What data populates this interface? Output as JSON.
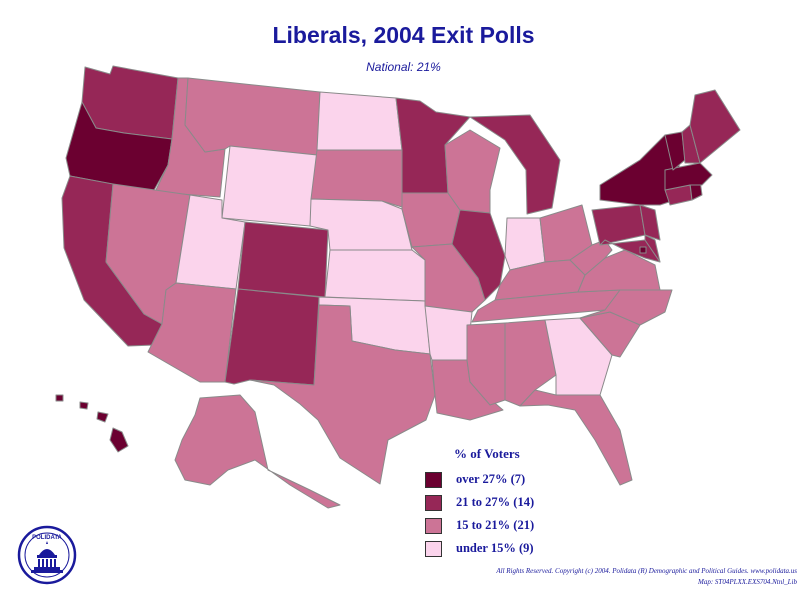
{
  "header": {
    "title": "Liberals, 2004 Exit Polls",
    "subtitle": "National: 21%"
  },
  "colors": {
    "over_27": "#6b0030",
    "21_to_27": "#962757",
    "15_to_21": "#cc7496",
    "under_15": "#fbd4ec",
    "border": "#8a8a8a",
    "text": "#1a1a9c"
  },
  "legend": {
    "title": "% of Voters",
    "items": [
      {
        "label": "over 27% (7)",
        "color": "#6b0030"
      },
      {
        "label": "21 to 27% (14)",
        "color": "#962757"
      },
      {
        "label": "15 to 21% (21)",
        "color": "#cc7496"
      },
      {
        "label": "under 15% (9)",
        "color": "#fbd4ec"
      }
    ]
  },
  "states": {
    "OR": "over_27",
    "VT": "over_27",
    "NY": "over_27",
    "MA": "over_27",
    "RI": "over_27",
    "HI": "over_27",
    "DC": "over_27",
    "WA": "21_to_27",
    "CA": "21_to_27",
    "CO": "21_to_27",
    "NM": "21_to_27",
    "MN": "21_to_27",
    "IL": "21_to_27",
    "MI": "21_to_27",
    "PA": "21_to_27",
    "ME": "21_to_27",
    "NH": "21_to_27",
    "NJ": "21_to_27",
    "CT": "21_to_27",
    "MD": "21_to_27",
    "DE": "21_to_27",
    "ID": "15_to_21",
    "MT": "15_to_21",
    "NV": "15_to_21",
    "AZ": "15_to_21",
    "SD": "15_to_21",
    "TX": "15_to_21",
    "IA": "15_to_21",
    "MO": "15_to_21",
    "WI": "15_to_21",
    "LA": "15_to_21",
    "MS": "15_to_21",
    "AL": "15_to_21",
    "TN": "15_to_21",
    "KY": "15_to_21",
    "OH": "15_to_21",
    "WV": "15_to_21",
    "VA": "15_to_21",
    "NC": "15_to_21",
    "SC": "15_to_21",
    "FL": "15_to_21",
    "AK": "15_to_21",
    "WY": "under_15",
    "UT": "under_15",
    "ND": "under_15",
    "NE": "under_15",
    "KS": "under_15",
    "OK": "under_15",
    "AR": "under_15",
    "IN": "under_15",
    "GA": "under_15"
  },
  "logo": {
    "text": "POLIDATA"
  },
  "footer": {
    "copyright": "All Rights Reserved. Copyright (c) 2004. Polidata (R) Demographic and Political Guides. www.polidata.us",
    "map_id": "Map: ST04PLXX.EXS704.Ntnl_Lib"
  }
}
